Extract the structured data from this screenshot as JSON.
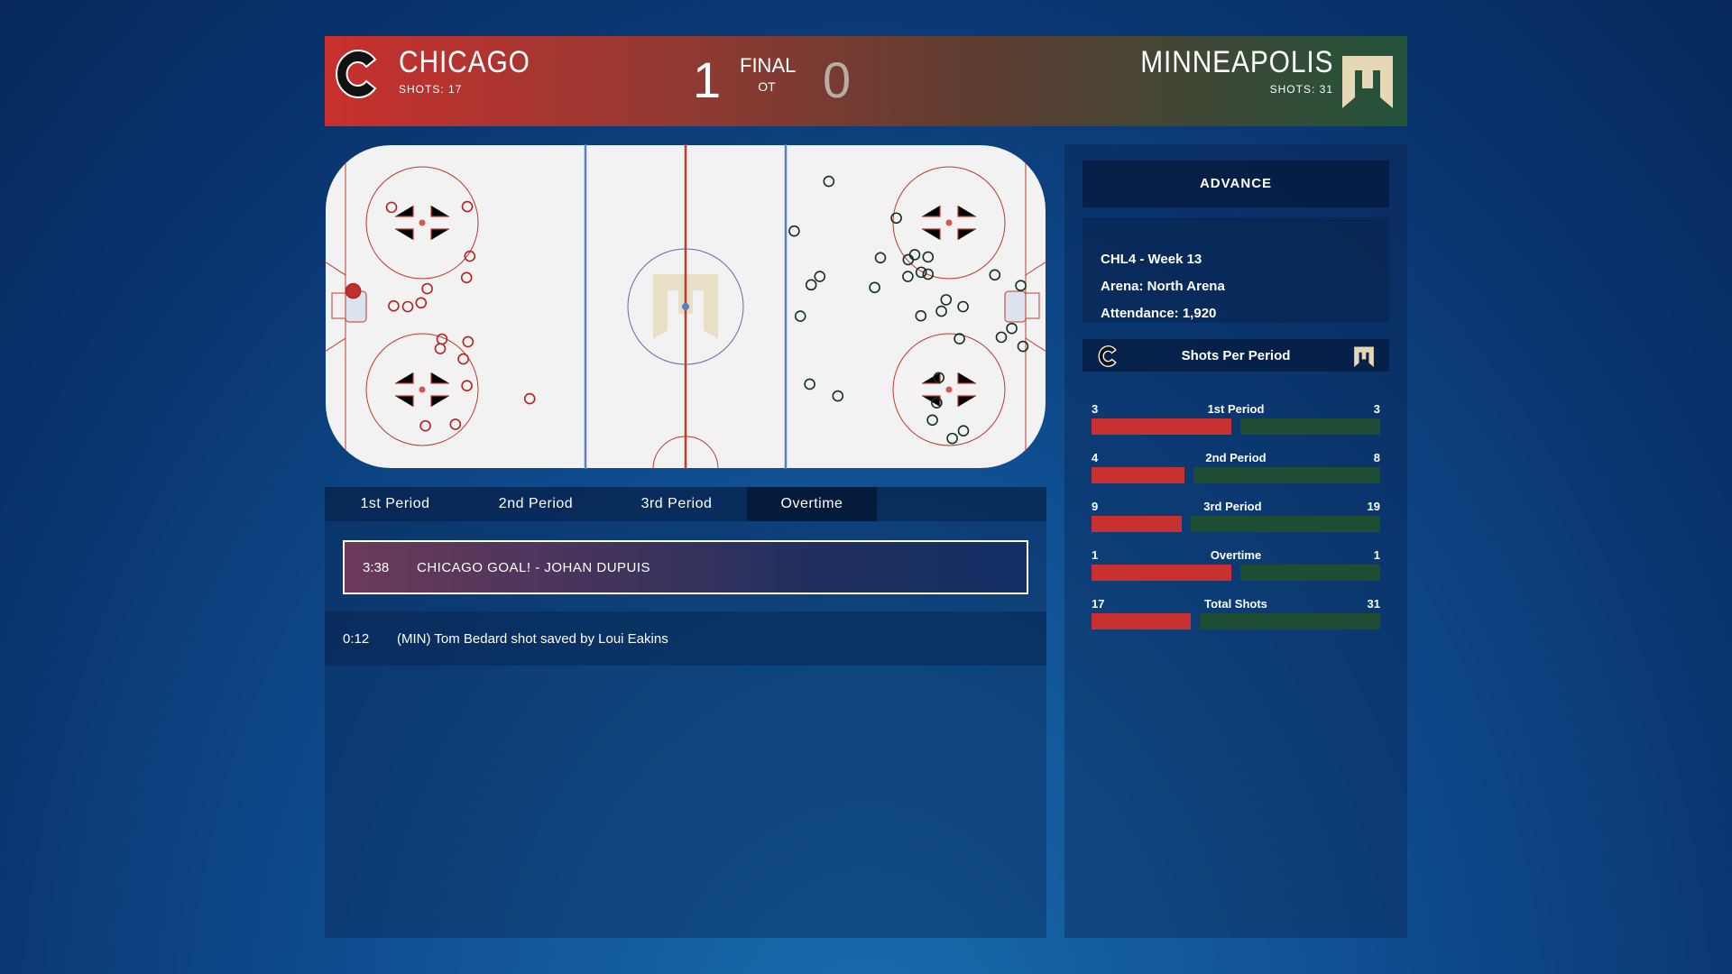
{
  "header": {
    "home": {
      "name": "CHICAGO",
      "shots": "SHOTS: 17",
      "score": "1"
    },
    "away": {
      "name": "MINNEAPOLIS",
      "shots": "SHOTS: 31",
      "score": "0"
    },
    "status": "FINAL",
    "status_sub": "OT"
  },
  "colors": {
    "home": "#c93131",
    "away": "#1f4d33",
    "away_logo": "#e6d7b5"
  },
  "tabs": [
    {
      "label": "1st Period"
    },
    {
      "label": "2nd Period"
    },
    {
      "label": "3rd Period"
    },
    {
      "label": "Overtime",
      "active": true
    }
  ],
  "events": [
    {
      "time": "3:38",
      "text": "CHICAGO GOAL! - JOHAN DUPUIS",
      "highlight": true
    },
    {
      "time": "0:12",
      "text": "(MIN) Tom Bedard shot saved by Loui Eakins"
    }
  ],
  "sidebar": {
    "advance_label": "ADVANCE",
    "info": [
      "CHL4 - Week 13",
      "Arena: North Arena",
      "Attendance: 1,920"
    ],
    "shots_title": "Shots Per Period",
    "periods": [
      {
        "label": "1st Period",
        "home": 3,
        "away": 3
      },
      {
        "label": "2nd Period",
        "home": 4,
        "away": 8
      },
      {
        "label": "3rd Period",
        "home": 9,
        "away": 19
      },
      {
        "label": "Overtime",
        "home": 1,
        "away": 1
      },
      {
        "label": "Total Shots",
        "home": 17,
        "away": 31
      }
    ]
  },
  "shot_map": {
    "units": "feet",
    "home_shots": [
      [
        18.5,
        16.5
      ],
      [
        39.5,
        16.3
      ],
      [
        40.2,
        29.3
      ],
      [
        39.3,
        34.9
      ],
      [
        28.4,
        37.8
      ],
      [
        19.1,
        42.3
      ],
      [
        23.0,
        42.5
      ],
      [
        26.7,
        41.5
      ],
      [
        32.5,
        51.0
      ],
      [
        32.0,
        53.5
      ],
      [
        39.7,
        51.7
      ],
      [
        38.4,
        56.2
      ],
      [
        39.4,
        63.2
      ],
      [
        27.9,
        73.7
      ],
      [
        36.2,
        73.3
      ],
      [
        56.8,
        66.6
      ]
    ],
    "home_goals": [
      [
        7.9,
        38.4
      ]
    ],
    "away_shots": [
      [
        139.7,
        9.7
      ],
      [
        158.4,
        19.3
      ],
      [
        130.1,
        22.7
      ],
      [
        154.0,
        29.7
      ],
      [
        161.7,
        30.2
      ],
      [
        163.5,
        28.9
      ],
      [
        167.2,
        29.5
      ],
      [
        137.2,
        34.6
      ],
      [
        134.8,
        36.8
      ],
      [
        161.6,
        34.6
      ],
      [
        165.3,
        33.5
      ],
      [
        167.2,
        34.0
      ],
      [
        152.4,
        37.5
      ],
      [
        185.7,
        34.2
      ],
      [
        192.9,
        37.0
      ],
      [
        172.2,
        40.7
      ],
      [
        176.9,
        42.5
      ],
      [
        170.9,
        43.7
      ],
      [
        165.2,
        44.9
      ],
      [
        131.8,
        45.0
      ],
      [
        190.4,
        48.2
      ],
      [
        187.5,
        50.5
      ],
      [
        193.5,
        52.9
      ],
      [
        175.9,
        50.9
      ],
      [
        170.2,
        61.1
      ],
      [
        134.4,
        62.8
      ],
      [
        142.2,
        65.9
      ],
      [
        169.6,
        67.7
      ],
      [
        168.4,
        72.2
      ],
      [
        177.0,
        75.0
      ],
      [
        173.9,
        77.0
      ]
    ]
  }
}
